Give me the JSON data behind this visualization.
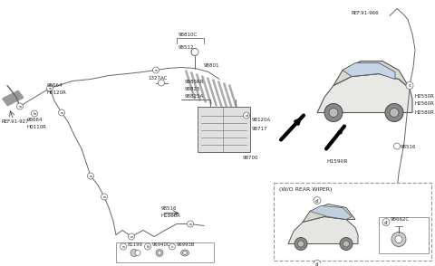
{
  "bg": "#f0f0ec",
  "lc": "#666666",
  "tc": "#222222",
  "lw": 0.7,
  "fs": 4.5,
  "labels": {
    "ref91927": "REF.91-927",
    "ref91966": "REF.91-966",
    "h0120r": "H0120R",
    "h0110r": "H0110R",
    "h1590r": "H1590R",
    "h1860r": "H1860R",
    "h2550r": "H2550R",
    "h2560r": "H2560R",
    "h2580r": "H2580R",
    "98664": "98664",
    "98810c": "98810C",
    "98512": "98512",
    "1327ac": "1327AC",
    "98801": "98801",
    "9885rr": "9885RR",
    "98825": "98825",
    "98825a": "98825A",
    "98120a": "98120A",
    "98717": "98717",
    "98700": "98700",
    "98516a": "98516",
    "98516b": "98516",
    "wo_rear_wiper": "(W/O REAR WIPER)",
    "a_81199": "81199",
    "b_96940c": "96940C",
    "c_96993b": "96993B",
    "d_98662c": "98662C"
  }
}
